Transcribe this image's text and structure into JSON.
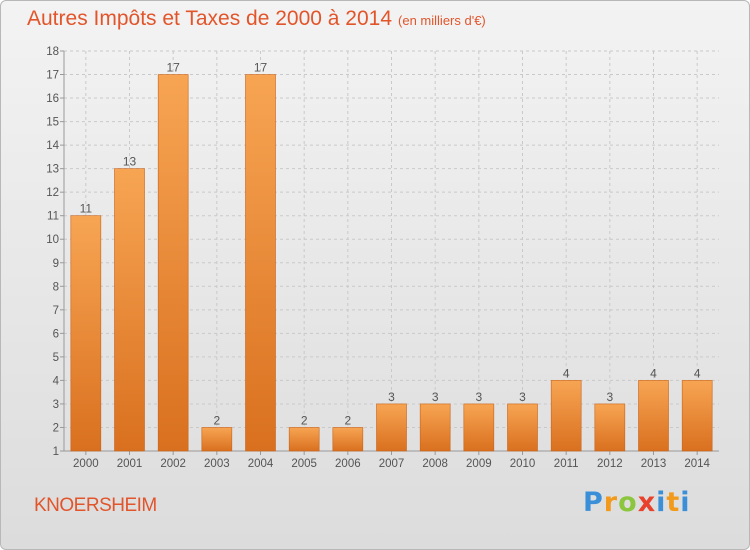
{
  "header": {
    "title": "Autres Impôts et Taxes de 2000 à 2014",
    "unit": "(en milliers d'€)"
  },
  "footer": {
    "commune": "KNOERSHEIM",
    "logo_letters": [
      "P",
      "r",
      "o",
      "x",
      "i",
      "t",
      "i"
    ],
    "logo_colors": [
      "#3a8fd8",
      "#f29a1c",
      "#8cc63f",
      "#e8412c",
      "#3a8fd8",
      "#f29a1c",
      "#3a8fd8"
    ]
  },
  "chart_data": {
    "type": "bar",
    "categories": [
      "2000",
      "2001",
      "2002",
      "2003",
      "2004",
      "2005",
      "2006",
      "2007",
      "2008",
      "2009",
      "2010",
      "2011",
      "2012",
      "2013",
      "2014"
    ],
    "values": [
      11,
      13,
      17,
      2,
      17,
      2,
      2,
      3,
      3,
      3,
      3,
      4,
      3,
      4,
      4
    ],
    "ylim": [
      1,
      18
    ],
    "yticks": [
      "1",
      "2",
      "3",
      "4",
      "5",
      "6",
      "7",
      "8",
      "9",
      "10",
      "11",
      "12",
      "13",
      "14",
      "15",
      "16",
      "17",
      "18"
    ],
    "grid": true,
    "colors": {
      "bar_light": "#f7a553",
      "bar_dark": "#d9701f",
      "grid": "#c9c9c9",
      "axis": "#999999"
    }
  }
}
